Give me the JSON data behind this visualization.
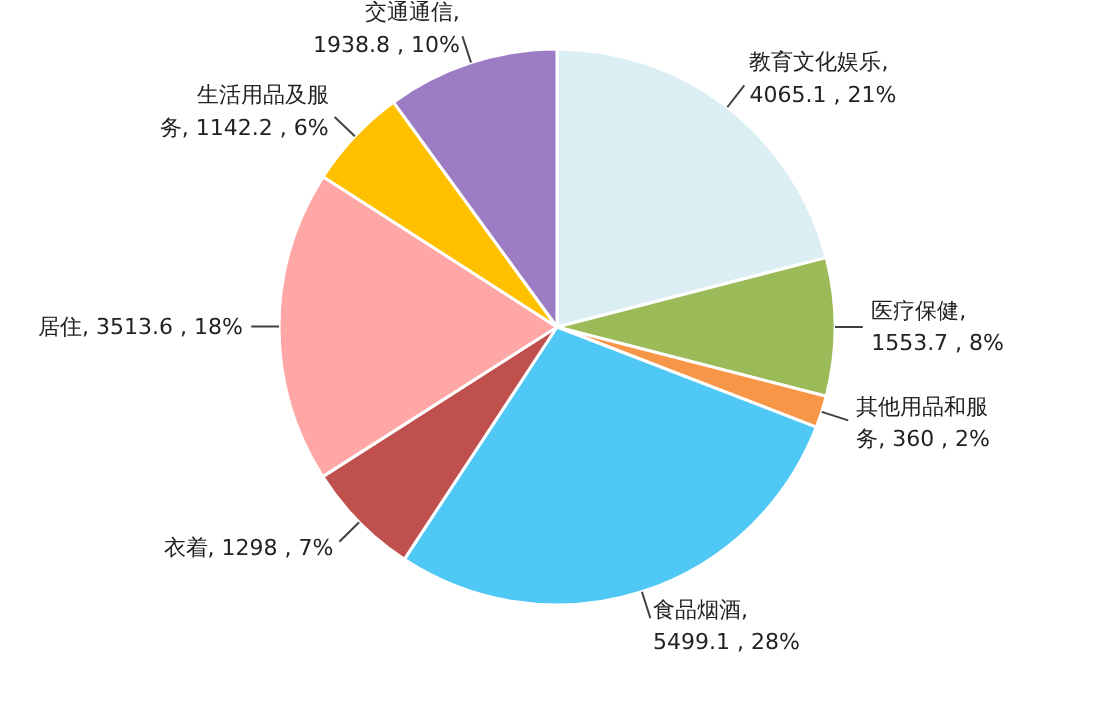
{
  "chart_data": {
    "type": "pie",
    "categories": [
      "教育文化娱乐",
      "医疗保健",
      "其他用品和服务",
      "食品烟酒",
      "衣着",
      "居住",
      "生活用品及服务",
      "交通通信"
    ],
    "values": [
      4065.1,
      1553.7,
      360,
      5499.1,
      1298,
      3513.6,
      1142.2,
      1938.8
    ],
    "colors": [
      "#dbeef4",
      "#9bbb59",
      "#f79646",
      "#4fc8f5",
      "#c0504d",
      "#ffa6a6",
      "#ffc000",
      "#9c7cc4"
    ],
    "value_labels": [
      ", 4065.1 , 21%",
      ", 1553.7 , 8%",
      ", 360 , 2%",
      ", 5499.1 , 28%",
      ", 1298 , 7%",
      ", 3513.6 , 18%",
      ", 1142.2 , 6%",
      ", 1938.8 , 10%"
    ]
  }
}
